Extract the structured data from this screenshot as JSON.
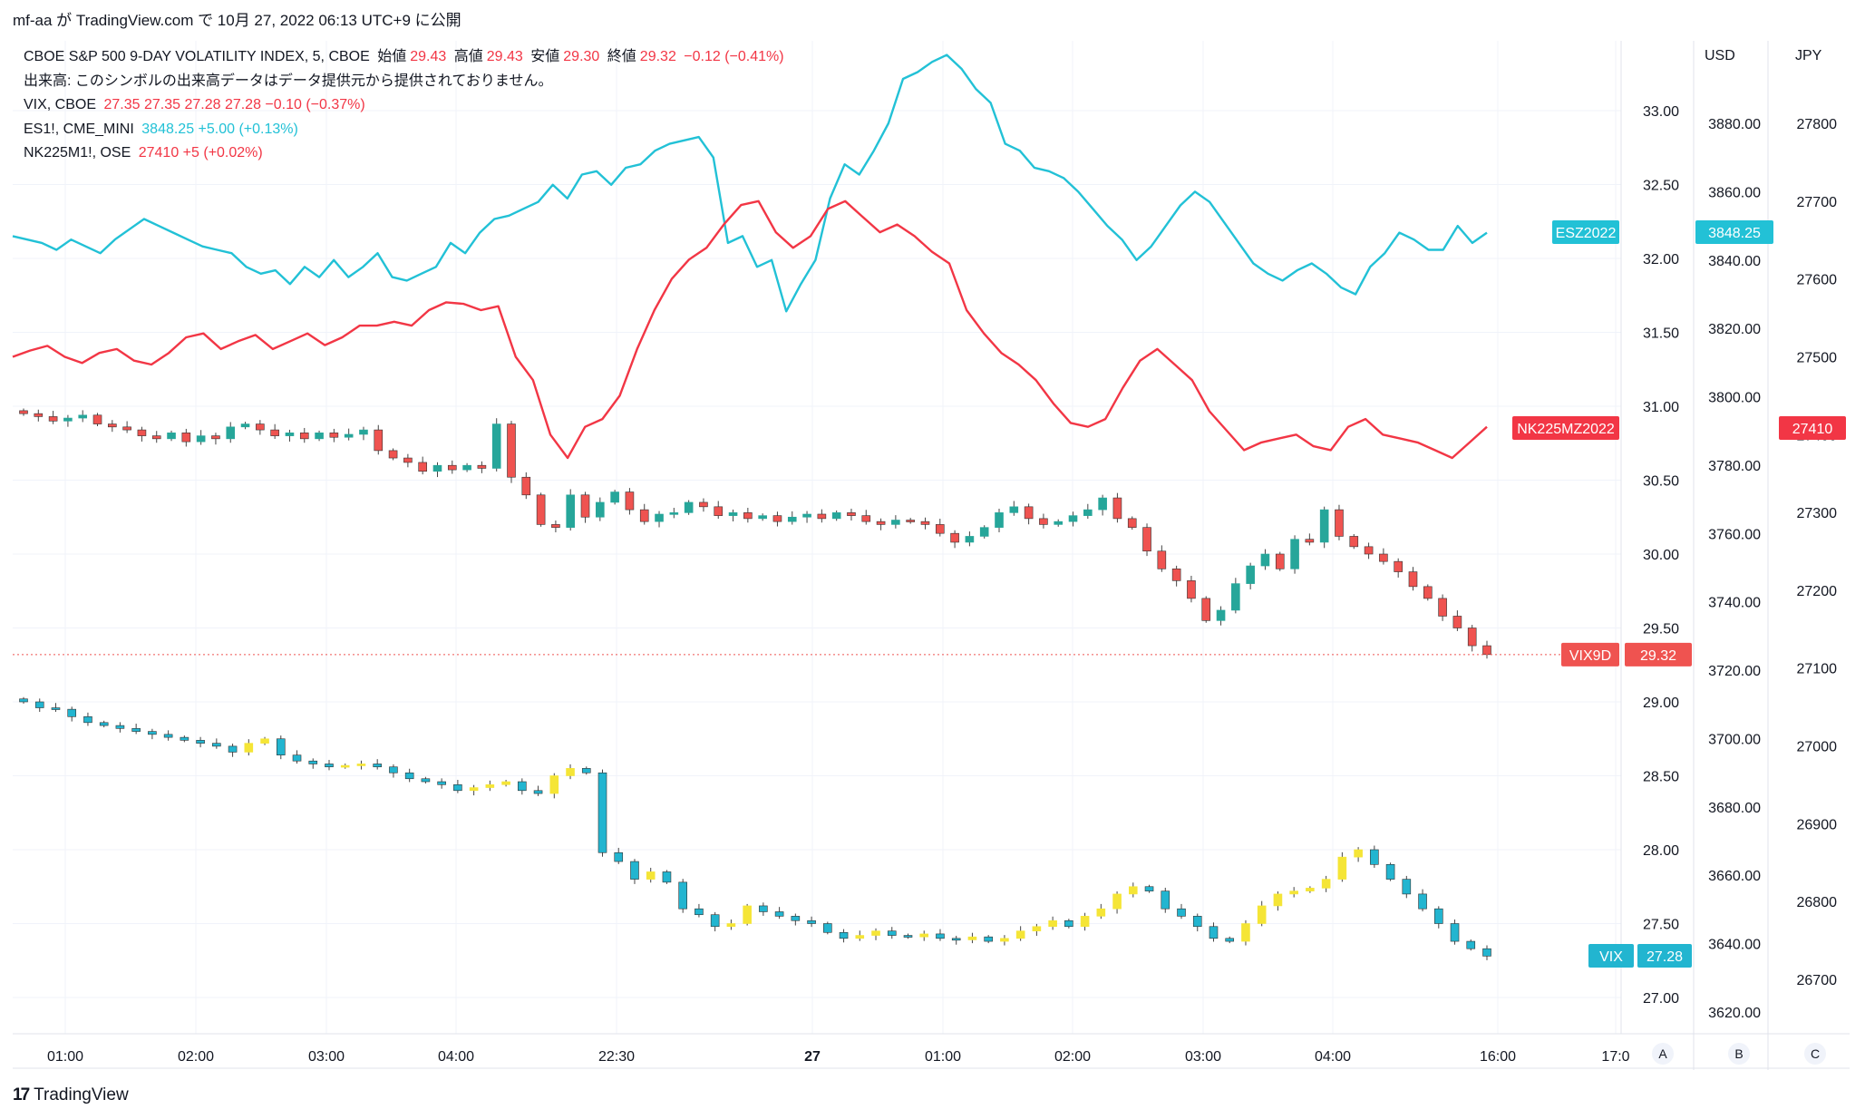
{
  "header": {
    "publish_line": "mf-aa が TradingView.com で 10月 27, 2022 06:13 UTC+9 に公開"
  },
  "legend": {
    "main": {
      "name": "CBOE S&P 500 9-DAY VOLATILITY INDEX, 5, CBOE",
      "open_label": "始値",
      "open": "29.43",
      "high_label": "高値",
      "high": "29.43",
      "low_label": "安値",
      "low": "29.30",
      "close_label": "終値",
      "close": "29.32",
      "change": "−0.12 (−0.41%)"
    },
    "volume_note": "出来高: このシンボルの出来高データはデータ提供元から提供されておりません。",
    "vix": {
      "name": "VIX, CBOE",
      "values": "27.35  27.35  27.28  27.28  −0.10 (−0.37%)"
    },
    "es": {
      "name": "ES1!, CME_MINI",
      "values": "3848.25  +5.00 (+0.13%)"
    },
    "nk": {
      "name": "NK225M1!, OSE",
      "values": "27410  +5 (+0.02%)"
    }
  },
  "scales": {
    "usd_header": "USD",
    "jpy_header": "JPY"
  },
  "price_labels": {
    "es_tag": "ESZ2022",
    "es_value": "3848.25",
    "nk_tag": "NK225MZ2022",
    "nk_value": "27410",
    "vix9d_tag": "VIX9D",
    "vix9d_value": "29.32",
    "vix_tag": "VIX",
    "vix_value": "27.28"
  },
  "buttons": {
    "a": "A",
    "b": "B",
    "c": "C"
  },
  "footer": {
    "brand": "TradingView"
  },
  "colors": {
    "up": "#26a69a",
    "down": "#ef5350",
    "es_line": "#22c1d6",
    "nk_line": "#f23645",
    "vix_up": "#f5e536",
    "vix_down": "#22b5d0",
    "grid": "#f0f3fa"
  },
  "chart_data": {
    "type": "candlestick + line overlay",
    "x_ticks": [
      "01:00",
      "02:00",
      "03:00",
      "04:00",
      "22:30",
      "27",
      "01:00",
      "02:00",
      "03:00",
      "04:00",
      "16:00",
      "17:0"
    ],
    "left_axis_vix9d": {
      "ticks": [
        "33.00",
        "32.50",
        "32.00",
        "31.50",
        "31.00",
        "30.50",
        "30.00",
        "29.50",
        "29.00",
        "28.50",
        "28.00",
        "27.50",
        "27.00"
      ],
      "range": [
        26.75,
        33.2
      ]
    },
    "usd_axis": {
      "ticks": [
        "3880.00",
        "3860.00",
        "3840.00",
        "3820.00",
        "3800.00",
        "3780.00",
        "3760.00",
        "3740.00",
        "3720.00",
        "3700.00",
        "3680.00",
        "3660.00",
        "3640.00",
        "3620.00"
      ]
    },
    "jpy_axis": {
      "ticks": [
        "27800",
        "27700",
        "27600",
        "27500",
        "27400",
        "27300",
        "27200",
        "27100",
        "27000",
        "26900",
        "26800",
        "26700"
      ]
    },
    "series": [
      {
        "name": "VIX9D",
        "kind": "candles",
        "close_profile": [
          30.95,
          30.93,
          30.9,
          30.92,
          30.94,
          30.88,
          30.86,
          30.84,
          30.8,
          30.78,
          30.82,
          30.76,
          30.8,
          30.78,
          30.86,
          30.88,
          30.84,
          30.8,
          30.82,
          30.78,
          30.82,
          30.79,
          30.81,
          30.84,
          30.7,
          30.65,
          30.62,
          30.56,
          30.6,
          30.57,
          30.6,
          30.58,
          30.88,
          30.52,
          30.4,
          30.2,
          30.18,
          30.4,
          30.25,
          30.35,
          30.42,
          30.3,
          30.22,
          30.27,
          30.28,
          30.35,
          30.32,
          30.26,
          30.28,
          30.24,
          30.26,
          30.22,
          30.25,
          30.27,
          30.24,
          30.28,
          30.26,
          30.22,
          30.2,
          30.23,
          30.22,
          30.2,
          30.14,
          30.08,
          30.12,
          30.18,
          30.28,
          30.32,
          30.24,
          30.2,
          30.22,
          30.26,
          30.3,
          30.38,
          30.24,
          30.18,
          30.02,
          29.9,
          29.82,
          29.7,
          29.55,
          29.62,
          29.8,
          29.92,
          30.0,
          29.9,
          30.1,
          30.08,
          30.3,
          30.12,
          30.05,
          30.0,
          29.95,
          29.88,
          29.78,
          29.7,
          29.58,
          29.5,
          29.38,
          29.32
        ]
      },
      {
        "name": "VIX",
        "kind": "candles",
        "close_profile": [
          29.0,
          28.96,
          28.95,
          28.9,
          28.86,
          28.84,
          28.82,
          28.8,
          28.78,
          28.76,
          28.74,
          28.72,
          28.7,
          28.66,
          28.72,
          28.75,
          28.64,
          28.6,
          28.58,
          28.56,
          28.57,
          28.58,
          28.56,
          28.52,
          28.48,
          28.46,
          28.44,
          28.4,
          28.42,
          28.44,
          28.46,
          28.4,
          28.38,
          28.5,
          28.55,
          28.52,
          27.98,
          27.92,
          27.8,
          27.85,
          27.78,
          27.6,
          27.56,
          27.48,
          27.5,
          27.62,
          27.58,
          27.55,
          27.52,
          27.5,
          27.44,
          27.4,
          27.42,
          27.45,
          27.42,
          27.41,
          27.43,
          27.4,
          27.39,
          27.41,
          27.38,
          27.4,
          27.45,
          27.48,
          27.52,
          27.48,
          27.55,
          27.6,
          27.7,
          27.75,
          27.72,
          27.6,
          27.55,
          27.48,
          27.4,
          27.38,
          27.5,
          27.62,
          27.7,
          27.72,
          27.74,
          27.8,
          27.95,
          28.0,
          27.9,
          27.8,
          27.7,
          27.6,
          27.5,
          27.38,
          27.33,
          27.28
        ]
      },
      {
        "name": "ESZ2022",
        "kind": "line",
        "values": [
          3847,
          3846,
          3845,
          3843,
          3846,
          3844,
          3842,
          3846,
          3849,
          3852,
          3850,
          3848,
          3846,
          3844,
          3843,
          3842,
          3838,
          3836,
          3837,
          3833,
          3838,
          3835,
          3840,
          3835,
          3838,
          3842,
          3835,
          3834,
          3836,
          3838,
          3845,
          3842,
          3848,
          3852,
          3853,
          3855,
          3857,
          3862,
          3858,
          3865,
          3866,
          3862,
          3867,
          3868,
          3872,
          3874,
          3875,
          3876,
          3870,
          3845,
          3847,
          3838,
          3840,
          3825,
          3833,
          3840,
          3858,
          3868,
          3865,
          3872,
          3880,
          3893,
          3895,
          3898,
          3900,
          3896,
          3890,
          3886,
          3874,
          3872,
          3867,
          3866,
          3864,
          3860,
          3855,
          3850,
          3846,
          3840,
          3844,
          3850,
          3856,
          3860,
          3857,
          3851,
          3845,
          3839,
          3836,
          3834,
          3837,
          3839,
          3836,
          3832,
          3830,
          3838,
          3842,
          3848,
          3846,
          3843,
          3843,
          3850,
          3845,
          3848
        ]
      },
      {
        "name": "NK225MZ2022",
        "kind": "line",
        "values": [
          27500,
          27508,
          27514,
          27500,
          27492,
          27505,
          27510,
          27495,
          27490,
          27505,
          27525,
          27530,
          27510,
          27520,
          27528,
          27510,
          27520,
          27530,
          27515,
          27525,
          27540,
          27540,
          27545,
          27540,
          27560,
          27570,
          27568,
          27560,
          27565,
          27500,
          27470,
          27400,
          27370,
          27410,
          27420,
          27450,
          27510,
          27560,
          27600,
          27625,
          27640,
          27670,
          27695,
          27700,
          27660,
          27640,
          27655,
          27690,
          27700,
          27680,
          27660,
          27670,
          27655,
          27635,
          27620,
          27560,
          27530,
          27505,
          27490,
          27470,
          27440,
          27415,
          27410,
          27420,
          27460,
          27495,
          27510,
          27490,
          27470,
          27430,
          27405,
          27380,
          27390,
          27395,
          27400,
          27385,
          27380,
          27410,
          27420,
          27400,
          27395,
          27390,
          27380,
          27370,
          27390,
          27410
        ]
      }
    ]
  }
}
